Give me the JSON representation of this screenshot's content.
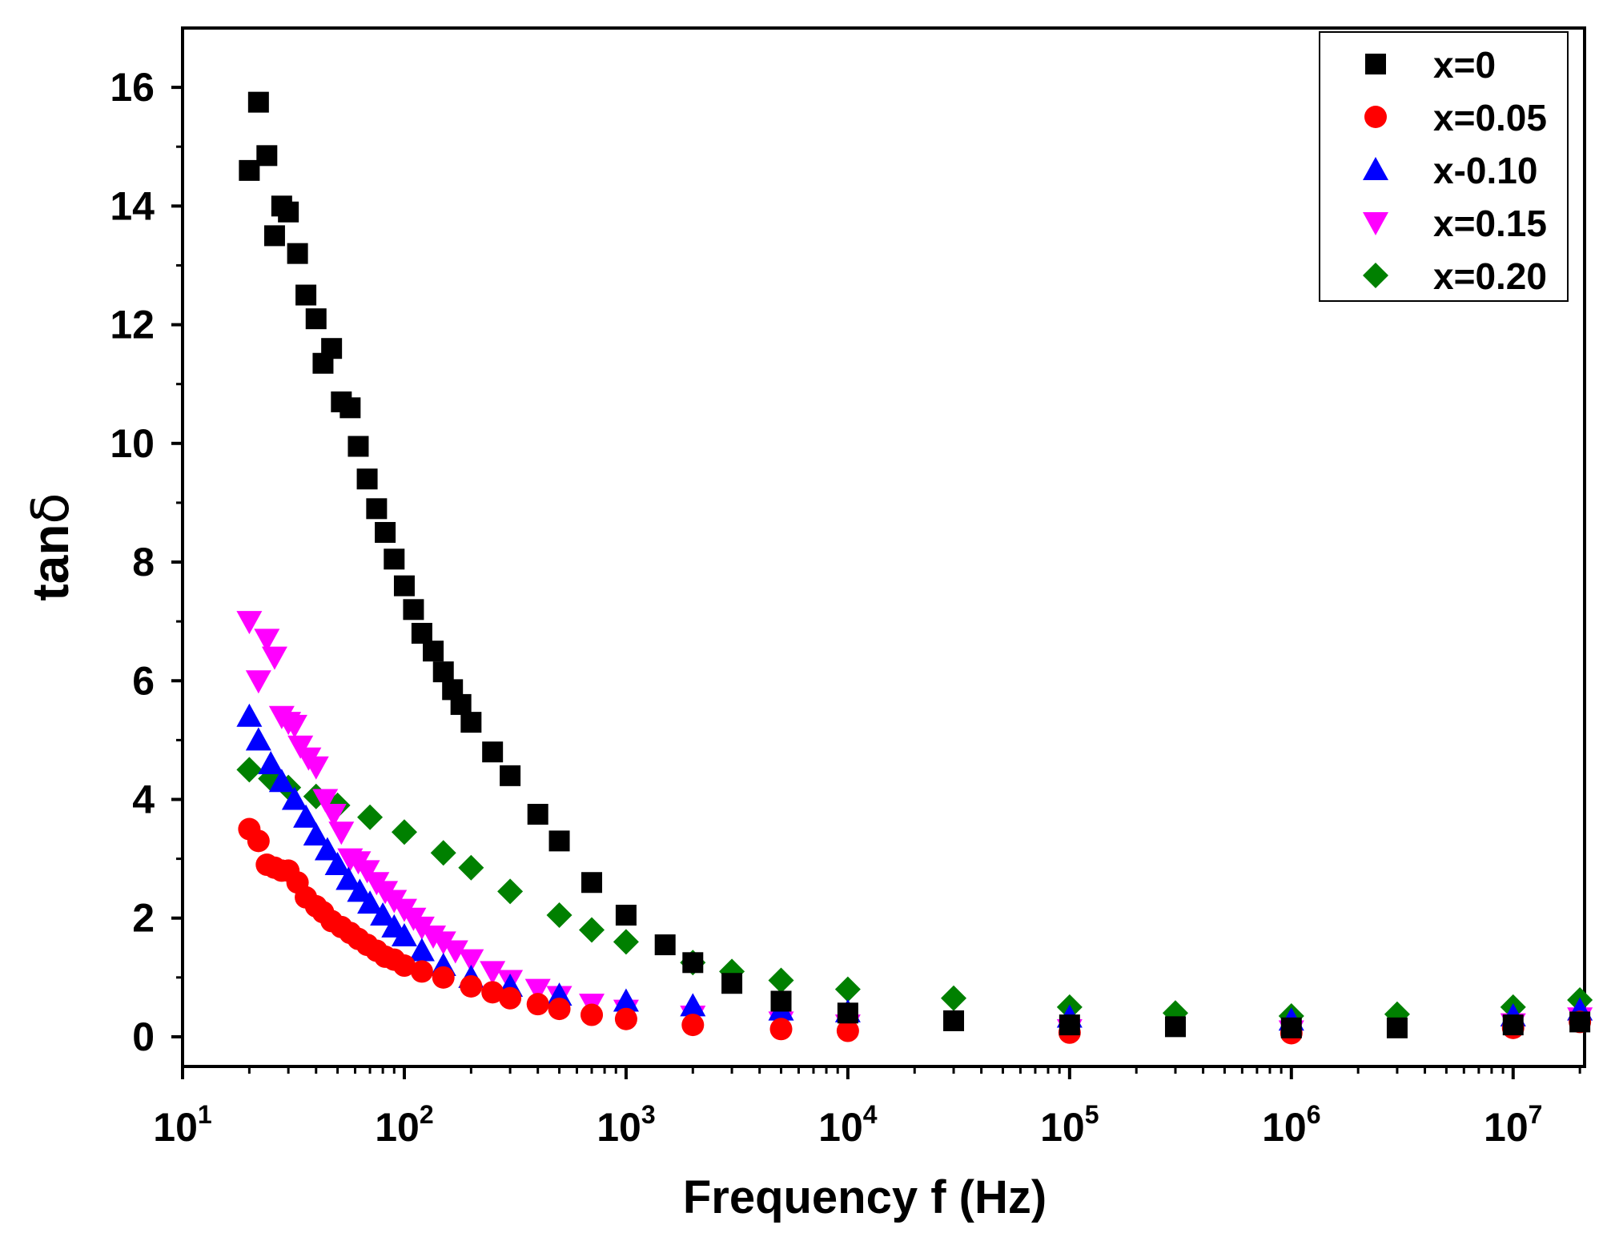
{
  "chart_data": {
    "type": "scatter",
    "title": "",
    "xlabel": "Frequency f (Hz)",
    "ylabel_main": "tan",
    "ylabel_symbol": "δ",
    "xscale": "log",
    "xlim": [
      10,
      21000000
    ],
    "ylim": [
      -0.5,
      17
    ],
    "yticks": [
      "0",
      "2",
      "4",
      "6",
      "8",
      "10",
      "12",
      "14",
      "16"
    ],
    "xticks": [
      {
        "base": "10",
        "exp": "1"
      },
      {
        "base": "10",
        "exp": "2"
      },
      {
        "base": "10",
        "exp": "3"
      },
      {
        "base": "10",
        "exp": "4"
      },
      {
        "base": "10",
        "exp": "5"
      },
      {
        "base": "10",
        "exp": "6"
      },
      {
        "base": "10",
        "exp": "7"
      }
    ],
    "legend_position": "top-right",
    "series": [
      {
        "name": "x=0",
        "marker": "square",
        "color": "#000000",
        "x": [
          20,
          22,
          24,
          26,
          28,
          30,
          33,
          36,
          40,
          43,
          47,
          52,
          57,
          62,
          68,
          75,
          82,
          90,
          100,
          110,
          120,
          135,
          150,
          165,
          180,
          200,
          250,
          300,
          400,
          500,
          700,
          1000,
          1500,
          2000,
          3000,
          5000,
          10000,
          30000,
          100000,
          300000,
          1000000,
          3000000,
          10000000,
          20000000
        ],
        "y": [
          14.6,
          15.75,
          14.85,
          13.5,
          14.0,
          13.9,
          13.2,
          12.5,
          12.1,
          11.35,
          11.6,
          10.7,
          10.6,
          9.95,
          9.4,
          8.9,
          8.5,
          8.05,
          7.6,
          7.2,
          6.8,
          6.5,
          6.15,
          5.85,
          5.6,
          5.3,
          4.8,
          4.4,
          3.75,
          3.3,
          2.6,
          2.05,
          1.55,
          1.25,
          0.9,
          0.6,
          0.4,
          0.27,
          0.2,
          0.17,
          0.15,
          0.15,
          0.2,
          0.25
        ]
      },
      {
        "name": "x=0.05",
        "marker": "circle",
        "color": "#ff0000",
        "x": [
          20,
          22,
          24,
          26,
          28,
          30,
          33,
          36,
          40,
          43,
          47,
          52,
          57,
          62,
          68,
          75,
          82,
          90,
          100,
          120,
          150,
          200,
          250,
          300,
          400,
          500,
          700,
          1000,
          2000,
          5000,
          10000,
          100000,
          1000000,
          10000000,
          20000000
        ],
        "y": [
          3.5,
          3.3,
          2.9,
          2.85,
          2.8,
          2.8,
          2.6,
          2.35,
          2.2,
          2.1,
          1.95,
          1.85,
          1.75,
          1.65,
          1.55,
          1.45,
          1.35,
          1.3,
          1.2,
          1.1,
          1.0,
          0.85,
          0.75,
          0.65,
          0.55,
          0.47,
          0.37,
          0.3,
          0.2,
          0.13,
          0.1,
          0.07,
          0.06,
          0.15,
          0.25
        ]
      },
      {
        "name": "x-0.10",
        "marker": "triangle-up",
        "color": "#0000ff",
        "x": [
          20,
          22,
          25,
          28,
          32,
          36,
          40,
          45,
          50,
          56,
          63,
          70,
          80,
          90,
          100,
          120,
          150,
          200,
          300,
          500,
          1000,
          2000,
          5000,
          10000,
          100000,
          1000000,
          10000000,
          20000000
        ],
        "y": [
          5.4,
          5.0,
          4.6,
          4.3,
          4.0,
          3.7,
          3.4,
          3.15,
          2.9,
          2.65,
          2.45,
          2.25,
          2.05,
          1.85,
          1.7,
          1.45,
          1.2,
          1.0,
          0.85,
          0.7,
          0.6,
          0.52,
          0.45,
          0.42,
          0.33,
          0.28,
          0.35,
          0.45
        ]
      },
      {
        "name": "x=0.15",
        "marker": "triangle-down",
        "color": "#ff00ff",
        "x": [
          20,
          22,
          24,
          26,
          28,
          30,
          32,
          34,
          37,
          40,
          44,
          48,
          52,
          57,
          62,
          68,
          75,
          82,
          90,
          100,
          110,
          120,
          135,
          150,
          170,
          200,
          250,
          300,
          400,
          500,
          700,
          1000,
          2000,
          5000,
          10000,
          100000,
          1000000,
          10000000,
          20000000
        ],
        "y": [
          7.0,
          6.0,
          6.7,
          6.4,
          5.4,
          5.3,
          5.25,
          4.9,
          4.7,
          4.55,
          4.0,
          3.75,
          3.45,
          3.0,
          2.95,
          2.8,
          2.6,
          2.45,
          2.3,
          2.15,
          2.0,
          1.85,
          1.7,
          1.6,
          1.45,
          1.3,
          1.1,
          0.95,
          0.8,
          0.68,
          0.55,
          0.45,
          0.35,
          0.25,
          0.2,
          0.12,
          0.1,
          0.22,
          0.32
        ]
      },
      {
        "name": "x=0.20",
        "marker": "diamond",
        "color": "#008000",
        "x": [
          20,
          25,
          30,
          40,
          50,
          70,
          100,
          150,
          200,
          300,
          500,
          700,
          1000,
          2000,
          3000,
          5000,
          10000,
          30000,
          100000,
          300000,
          1000000,
          3000000,
          10000000,
          20000000
        ],
        "y": [
          4.5,
          4.35,
          4.2,
          4.05,
          3.9,
          3.7,
          3.45,
          3.1,
          2.85,
          2.45,
          2.05,
          1.8,
          1.6,
          1.25,
          1.1,
          0.95,
          0.8,
          0.65,
          0.5,
          0.4,
          0.35,
          0.38,
          0.5,
          0.62
        ]
      }
    ]
  }
}
